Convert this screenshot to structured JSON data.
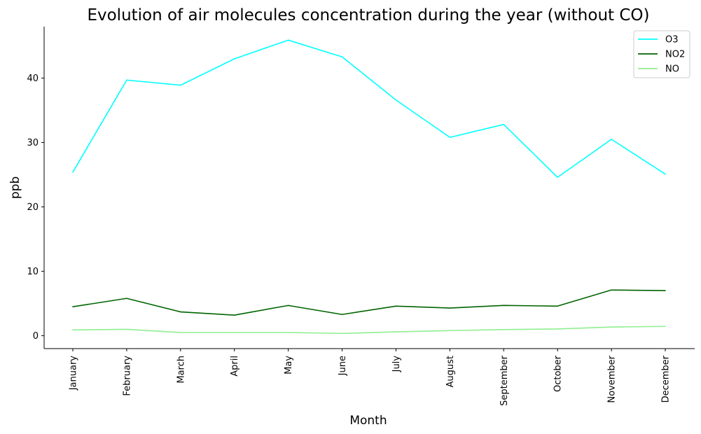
{
  "chart_data": {
    "type": "line",
    "title": "Evolution of air molecules concentration during the year (without CO)",
    "xlabel": "Month",
    "ylabel": "ppb",
    "categories": [
      "January",
      "February",
      "March",
      "April",
      "May",
      "June",
      "July",
      "August",
      "September",
      "October",
      "November",
      "December"
    ],
    "ylim": [
      -2,
      48
    ],
    "yticks": [
      0,
      10,
      20,
      30,
      40
    ],
    "legend_position": "top-right",
    "grid": false,
    "series": [
      {
        "name": "O3",
        "color": "#00ffff",
        "values": [
          25.4,
          39.7,
          38.9,
          43.0,
          45.9,
          43.3,
          36.6,
          30.8,
          32.8,
          24.6,
          30.5,
          25.1
        ]
      },
      {
        "name": "NO2",
        "color": "#006400",
        "values": [
          4.5,
          5.8,
          3.7,
          3.2,
          4.7,
          3.3,
          4.6,
          4.3,
          4.7,
          4.6,
          7.1,
          7.0
        ]
      },
      {
        "name": "NO",
        "color": "#90ee90",
        "values": [
          0.9,
          1.0,
          0.5,
          0.5,
          0.5,
          0.35,
          0.6,
          0.8,
          0.95,
          1.05,
          1.35,
          1.45
        ]
      }
    ]
  }
}
